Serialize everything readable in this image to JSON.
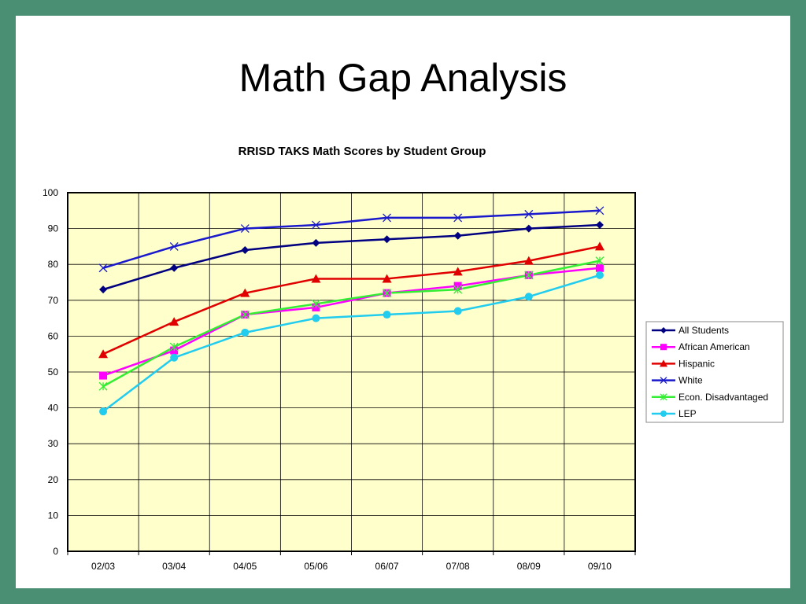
{
  "slide": {
    "title": "Math Gap Analysis",
    "border_color": "#4a8f74"
  },
  "chart_data": {
    "type": "line",
    "title": "RRISD TAKS Math Scores by Student Group",
    "xlabel": "",
    "ylabel": "",
    "categories": [
      "02/03",
      "03/04",
      "04/05",
      "05/06",
      "06/07",
      "07/08",
      "08/09",
      "09/10"
    ],
    "ylim": [
      0,
      100
    ],
    "yticks": [
      0,
      10,
      20,
      30,
      40,
      50,
      60,
      70,
      80,
      90,
      100
    ],
    "grid": true,
    "plot_background": "#ffffcc",
    "legend_position": "right",
    "series": [
      {
        "name": "All Students",
        "color": "#000080",
        "marker": "diamond",
        "values": [
          73,
          79,
          84,
          86,
          87,
          88,
          90,
          91
        ]
      },
      {
        "name": "African American",
        "color": "#ff00ff",
        "marker": "square",
        "values": [
          49,
          56,
          66,
          68,
          72,
          74,
          77,
          79
        ]
      },
      {
        "name": "Hispanic",
        "color": "#e00000",
        "marker": "triangle",
        "values": [
          55,
          64,
          72,
          76,
          76,
          78,
          81,
          85
        ]
      },
      {
        "name": "White",
        "color": "#1a1acc",
        "marker": "x",
        "values": [
          79,
          85,
          90,
          91,
          93,
          93,
          94,
          95
        ]
      },
      {
        "name": "Econ. Disadvantaged",
        "color": "#33ee33",
        "marker": "star",
        "values": [
          46,
          57,
          66,
          69,
          72,
          73,
          77,
          81
        ]
      },
      {
        "name": "LEP",
        "color": "#22ccee",
        "marker": "circle",
        "values": [
          39,
          54,
          61,
          65,
          66,
          67,
          71,
          77
        ]
      }
    ]
  }
}
